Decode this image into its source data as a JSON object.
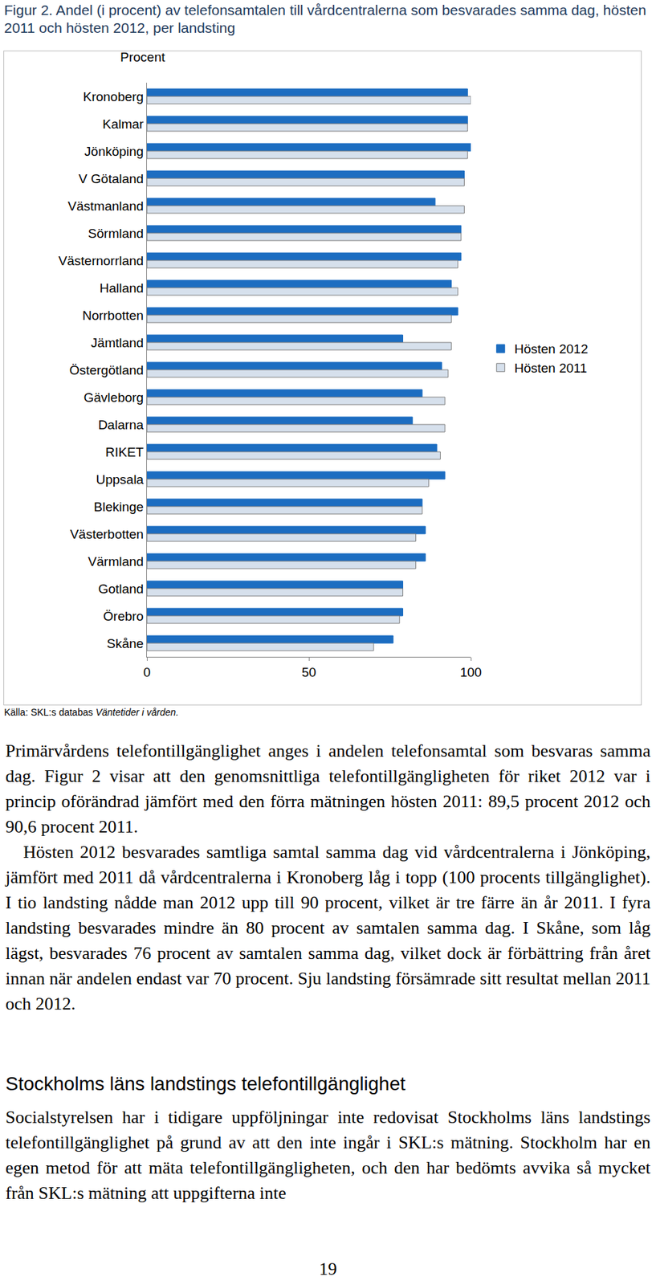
{
  "caption": "Figur 2. Andel (i procent) av telefonsamtalen till vårdcentralerna som besvarades samma dag, hösten 2011 och hösten 2012, per landsting",
  "chart_data": {
    "type": "bar",
    "orientation": "horizontal",
    "xlabel": "Procent",
    "categories": [
      "Kronoberg",
      "Kalmar",
      "Jönköping",
      "V Götaland",
      "Västmanland",
      "Sörmland",
      "Västernorrland",
      "Halland",
      "Norrbotten",
      "Jämtland",
      "Östergötland",
      "Gävleborg",
      "Dalarna",
      "RIKET",
      "Uppsala",
      "Blekinge",
      "Västerbotten",
      "Värmland",
      "Gotland",
      "Örebro",
      "Skåne"
    ],
    "series": [
      {
        "name": "Hösten 2012",
        "color": "#1c6dc1",
        "values": [
          99,
          99,
          100,
          98,
          89,
          97,
          97,
          94,
          96,
          79,
          91,
          85,
          82,
          89.5,
          92,
          85,
          86,
          86,
          79,
          79,
          76
        ]
      },
      {
        "name": "Hösten 2011",
        "color": "#d6e0ec",
        "values": [
          100,
          99,
          99,
          98,
          98,
          97,
          96,
          96,
          94,
          94,
          93,
          92,
          92,
          90.6,
          87,
          85,
          83,
          83,
          79,
          78,
          70
        ]
      }
    ],
    "xlim": [
      0,
      100
    ],
    "xticks": [
      0,
      50,
      100
    ],
    "grid": false,
    "legend": "right"
  },
  "source": {
    "text": "Källa: SKL:s databas",
    "italic": "Väntetider i vården."
  },
  "body": [
    "Primärvårdens telefontillgänglighet anges i andelen telefonsamtal som besvaras samma dag. Figur 2 visar att den genomsnittliga telefontillgängligheten för riket 2012 var i princip oförändrad jämfört med den förra mätningen hösten 2011: 89,5 procent 2012 och 90,6 procent 2011.",
    "Hösten 2012 besvarades samtliga samtal samma dag vid vårdcentralerna i Jönköping, jämfört med 2011 då vårdcentralerna i Kronoberg låg i topp (100 procents tillgänglighet). I tio landsting nådde man 2012 upp till 90 procent, vilket är tre färre än år 2011. I fyra landsting besvarades mindre än 80 procent av samtalen samma dag. I Skåne, som låg lägst, besvarades 76 procent av samtalen samma dag, vilket dock är förbättring från året innan när andelen endast var 70 procent. Sju landsting försämrade sitt resultat mellan 2011 och 2012."
  ],
  "heading": "Stockholms läns landstings telefontillgänglighet",
  "body2": [
    "Socialstyrelsen har i tidigare uppföljningar inte redovisat Stockholms läns landstings telefontillgänglighet på grund av att den inte ingår i SKL:s mätning. Stockholm har en egen metod för att mäta telefontillgängligheten, och den har bedömts avvika så mycket från SKL:s mätning att uppgifterna inte"
  ],
  "page_number": "19"
}
